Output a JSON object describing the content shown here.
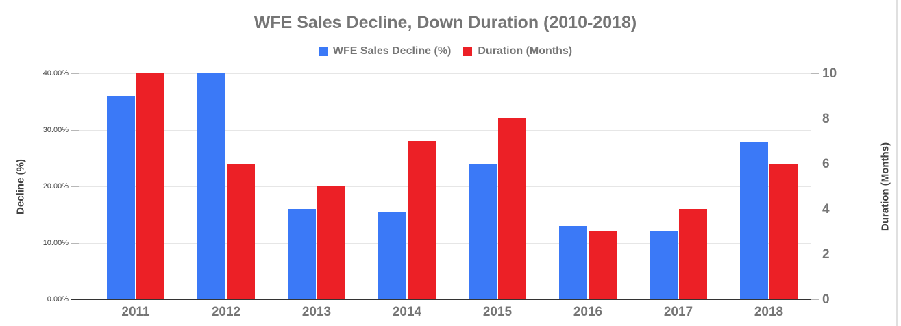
{
  "chart": {
    "title": "WFE Sales Decline, Down Duration (2010-2018)",
    "legend": [
      {
        "label": "WFE Sales Decline (%)",
        "swatch_icon": "blue-square-icon"
      },
      {
        "label": "Duration (Months)",
        "swatch_icon": "red-square-icon"
      }
    ],
    "left_axis": {
      "title": "Decline (%)",
      "tick_labels": [
        "0.00%",
        "10.00%",
        "20.00%",
        "30.00%",
        "40.00%"
      ]
    },
    "right_axis": {
      "title": "Duration (Months)",
      "tick_labels": [
        "0",
        "2",
        "4",
        "6",
        "8",
        "10"
      ]
    }
  },
  "chart_data": {
    "type": "bar",
    "title": "WFE Sales Decline, Down Duration (2010-2018)",
    "categories": [
      "2011",
      "2012",
      "2013",
      "2014",
      "2015",
      "2016",
      "2017",
      "2018"
    ],
    "series": [
      {
        "name": "WFE Sales Decline (%)",
        "axis": "left",
        "color": "#3B79F7",
        "values": [
          36,
          40,
          16,
          15.5,
          24,
          13,
          12,
          27.8
        ]
      },
      {
        "name": "Duration (Months)",
        "axis": "right",
        "color": "#EC2026",
        "values": [
          10,
          6,
          5,
          7,
          8,
          3,
          4,
          6
        ]
      }
    ],
    "xlabel": "",
    "ylabel": "Decline (%)",
    "y2label": "Duration (Months)",
    "ylim": [
      0,
      40
    ],
    "y2lim": [
      0,
      10
    ],
    "ytick_labels": [
      "0.00%",
      "10.00%",
      "20.00%",
      "30.00%",
      "40.00%"
    ],
    "y2tick_labels": [
      "0",
      "2",
      "4",
      "6",
      "8",
      "10"
    ],
    "grid": true,
    "legend_position": "top"
  },
  "colors": {
    "series_decline": "#3B79F7",
    "series_duration": "#EC2026",
    "title_text": "#757575",
    "axis_title_text": "#424242",
    "left_tick_text": "#444444",
    "gridline": "#e6e6e6",
    "baseline": "#333333"
  }
}
